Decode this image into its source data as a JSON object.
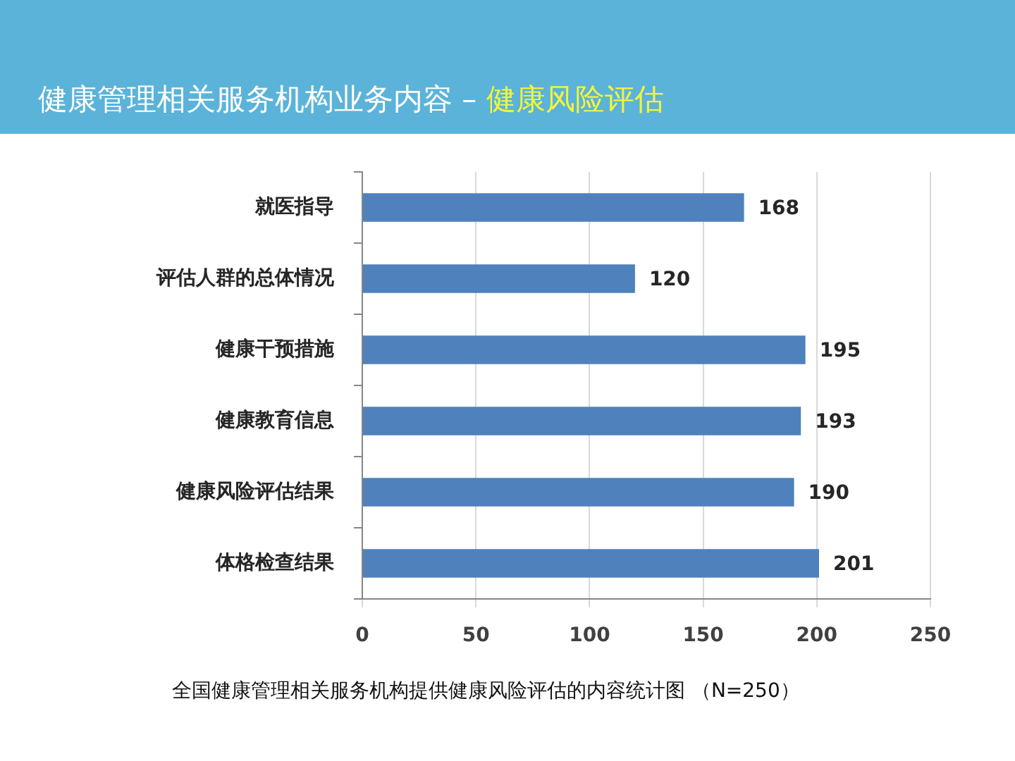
{
  "chart_data": {
    "type": "bar",
    "orientation": "horizontal",
    "title": "健康管理相关服务机构业务内容 –",
    "subtitle": "健康风险评估",
    "categories": [
      "就医指导",
      "评估人群的总体情况",
      "健康干预措施",
      "健康教育信息",
      "健康风险评估结果",
      "体格检查结果"
    ],
    "values": [
      168,
      120,
      195,
      193,
      190,
      201
    ],
    "color": "#4f81bd",
    "xlim": [
      0,
      250
    ],
    "xticks": [
      0,
      50,
      100,
      150,
      200,
      250
    ],
    "grid": "x",
    "data_labels": true,
    "legend": false,
    "annotations": [
      "全国健康管理相关服务机构提供健康风险评估的内容统计图 （N=250）"
    ]
  }
}
